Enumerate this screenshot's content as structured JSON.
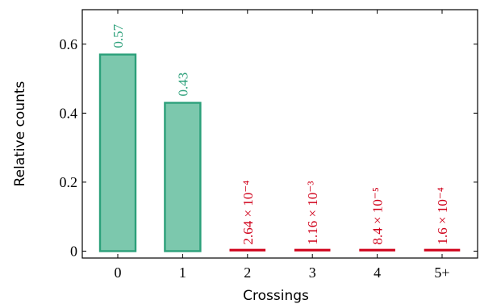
{
  "chart_data": {
    "type": "bar",
    "xlabel": "Crossings",
    "ylabel": "Relative counts",
    "categories": [
      "0",
      "1",
      "2",
      "3",
      "4",
      "5+"
    ],
    "values": [
      0.57,
      0.43,
      0.000264,
      0.00116,
      8.4e-05,
      0.00016
    ],
    "data_labels": [
      "0.57",
      "0.43",
      "2.64 × 10⁻⁴",
      "1.16 × 10⁻³",
      "8.4 × 10⁻⁵",
      "1.6 × 10⁻⁴"
    ],
    "label_colors": [
      "#2ca07a",
      "#2ca07a",
      "#d0021b",
      "#d0021b",
      "#d0021b",
      "#d0021b"
    ],
    "bar_fill": "#7cc8ad",
    "bar_stroke": "#2ca07a",
    "small_bar_color": "#d0021b",
    "ylim": [
      -0.02,
      0.7
    ],
    "yticks": [
      0,
      0.2,
      0.4,
      0.6
    ],
    "ytick_labels": [
      "0",
      "0.2",
      "0.4",
      "0.6"
    ],
    "grid": false,
    "legend": false
  }
}
